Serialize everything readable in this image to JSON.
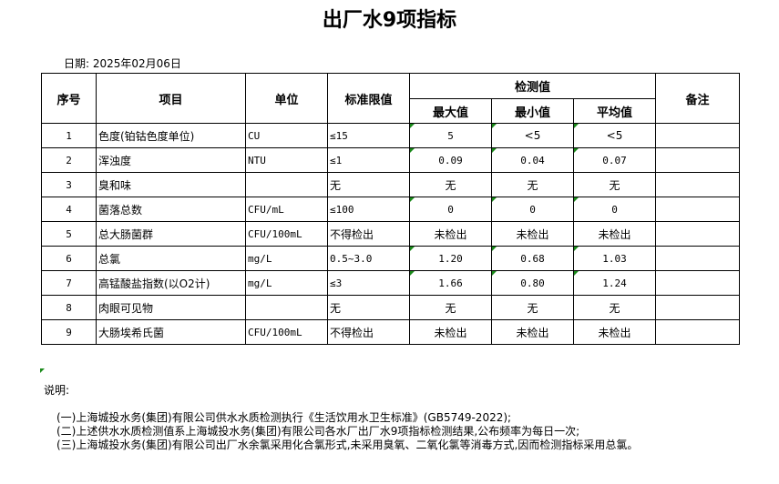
{
  "title": "出厂水9项指标",
  "date": "日期: 2025年02月06日",
  "headers": {
    "seq": "序号",
    "item": "项目",
    "unit": "单位",
    "limit": "标准限值",
    "detect": "检测值",
    "max": "最大值",
    "min": "最小值",
    "avg": "平均值",
    "remark": "备注"
  },
  "rows": [
    {
      "seq": "1",
      "item": "色度(铂钴色度单位)",
      "unit": "CU",
      "limit": "≤15",
      "max": "5",
      "min": "<5",
      "avg": "<5"
    },
    {
      "seq": "2",
      "item": "浑浊度",
      "unit": "NTU",
      "limit": "≤1",
      "max": "0.09",
      "min": "0.04",
      "avg": "0.07"
    },
    {
      "seq": "3",
      "item": "臭和味",
      "unit": "",
      "limit": "无",
      "max": "无",
      "min": "无",
      "avg": "无"
    },
    {
      "seq": "4",
      "item": "菌落总数",
      "unit": "CFU/mL",
      "limit": "≤100",
      "max": "0",
      "min": "0",
      "avg": "0"
    },
    {
      "seq": "5",
      "item": "总大肠菌群",
      "unit": "CFU/100mL",
      "limit": "不得检出",
      "max": "未检出",
      "min": "未检出",
      "avg": "未检出"
    },
    {
      "seq": "6",
      "item": "总氯",
      "unit": "mg/L",
      "limit": "0.5~3.0",
      "max": "1.20",
      "min": "0.68",
      "avg": "1.03"
    },
    {
      "seq": "7",
      "item": "高锰酸盐指数(以O2计)",
      "unit": "mg/L",
      "limit": "≤3",
      "max": "1.66",
      "min": "0.80",
      "avg": "1.24"
    },
    {
      "seq": "8",
      "item": "肉眼可见物",
      "unit": "",
      "limit": "无",
      "max": "无",
      "min": "无",
      "avg": "无"
    },
    {
      "seq": "9",
      "item": "大肠埃希氏菌",
      "unit": "CFU/100mL",
      "limit": "不得检出",
      "max": "未检出",
      "min": "未检出",
      "avg": "未检出"
    }
  ],
  "notes": {
    "label": "说明:",
    "items": [
      "(一)上海城投水务(集团)有限公司供水水质检测执行《生活饮用水卫生标准》(GB5749-2022);",
      "(二)上述供水水质检测值系上海城投水务(集团)有限公司各水厂出厂水9项指标检测结果,公布频率为每日一次;",
      "(三)上海城投水务(集团)有限公司出厂水余氯采用化合氯形式,未采用臭氧、二氧化氯等消毒方式,因而检测指标采用总氯。"
    ]
  },
  "accent": "#1a8a1a"
}
